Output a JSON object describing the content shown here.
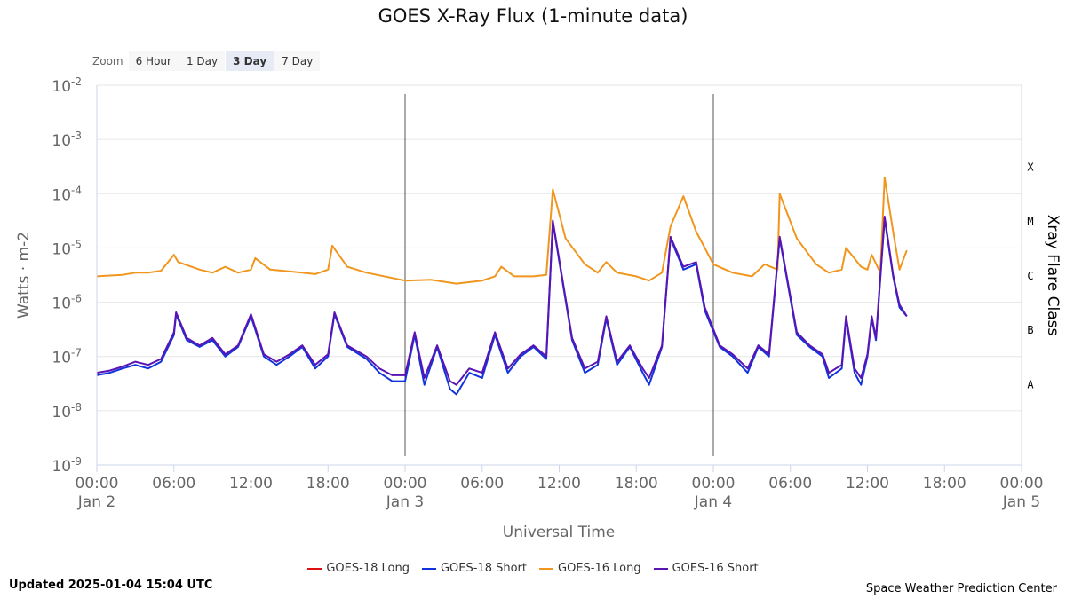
{
  "title": "GOES X-Ray Flux (1-minute data)",
  "zoom": {
    "label": "Zoom",
    "options": [
      "6 Hour",
      "1 Day",
      "3 Day",
      "7 Day"
    ],
    "active": "3 Day"
  },
  "updated": "Updated 2025-01-04 15:04 UTC",
  "credit": "Space Weather Prediction Center",
  "chart_data": {
    "type": "line",
    "title": "GOES X-Ray Flux (1-minute data)",
    "xlabel": "Universal Time",
    "ylabel": "Watts · m-2",
    "y2label": "Xray Flare Class",
    "yscale": "log",
    "ylim": [
      1e-09,
      0.01
    ],
    "xlim": [
      "2025-01-02 00:00",
      "2025-01-05 00:00"
    ],
    "x_ticks": [
      {
        "time": "00:00",
        "date": "Jan 2"
      },
      {
        "time": "06:00",
        "date": ""
      },
      {
        "time": "12:00",
        "date": ""
      },
      {
        "time": "18:00",
        "date": ""
      },
      {
        "time": "00:00",
        "date": "Jan 3"
      },
      {
        "time": "06:00",
        "date": ""
      },
      {
        "time": "12:00",
        "date": ""
      },
      {
        "time": "18:00",
        "date": ""
      },
      {
        "time": "00:00",
        "date": "Jan 4"
      },
      {
        "time": "06:00",
        "date": ""
      },
      {
        "time": "12:00",
        "date": ""
      },
      {
        "time": "18:00",
        "date": ""
      },
      {
        "time": "00:00",
        "date": "Jan 5"
      }
    ],
    "y_ticks": [
      {
        "base": "10",
        "exp": "-2",
        "value": 0.01
      },
      {
        "base": "10",
        "exp": "-3",
        "value": 0.001
      },
      {
        "base": "10",
        "exp": "-4",
        "value": 0.0001
      },
      {
        "base": "10",
        "exp": "-5",
        "value": 1e-05
      },
      {
        "base": "10",
        "exp": "-6",
        "value": 1e-06
      },
      {
        "base": "10",
        "exp": "-7",
        "value": 1e-07
      },
      {
        "base": "10",
        "exp": "-8",
        "value": 1e-08
      },
      {
        "base": "10",
        "exp": "-9",
        "value": 1e-09
      }
    ],
    "flare_classes": [
      {
        "label": "X",
        "value": 0.000316
      },
      {
        "label": "M",
        "value": 3.16e-05
      },
      {
        "label": "C",
        "value": 3.16e-06
      },
      {
        "label": "B",
        "value": 3.16e-07
      },
      {
        "label": "A",
        "value": 3.16e-08
      }
    ],
    "grid": true,
    "legend_position": "bottom",
    "day_markers": [
      "2025-01-03 00:00",
      "2025-01-04 00:00"
    ],
    "series": [
      {
        "name": "GOES-18 Long",
        "color": "#dd1111",
        "points": []
      },
      {
        "name": "GOES-18 Short",
        "color": "#1133dd",
        "points": [
          [
            "2025-01-02 00:00",
            4.5e-08
          ],
          [
            "2025-01-02 01:00",
            5e-08
          ],
          [
            "2025-01-02 02:00",
            6e-08
          ],
          [
            "2025-01-02 03:00",
            7e-08
          ],
          [
            "2025-01-02 04:00",
            6e-08
          ],
          [
            "2025-01-02 05:00",
            8e-08
          ],
          [
            "2025-01-02 06:00",
            2.5e-07
          ],
          [
            "2025-01-02 06:10",
            6e-07
          ],
          [
            "2025-01-02 07:00",
            2e-07
          ],
          [
            "2025-01-02 08:00",
            1.5e-07
          ],
          [
            "2025-01-02 09:00",
            2e-07
          ],
          [
            "2025-01-02 10:00",
            1e-07
          ],
          [
            "2025-01-02 11:00",
            1.5e-07
          ],
          [
            "2025-01-02 12:00",
            5.5e-07
          ],
          [
            "2025-01-02 13:00",
            1e-07
          ],
          [
            "2025-01-02 14:00",
            7e-08
          ],
          [
            "2025-01-02 15:00",
            1e-07
          ],
          [
            "2025-01-02 16:00",
            1.5e-07
          ],
          [
            "2025-01-02 17:00",
            6e-08
          ],
          [
            "2025-01-02 18:00",
            1e-07
          ],
          [
            "2025-01-02 18:30",
            6e-07
          ],
          [
            "2025-01-02 19:30",
            1.5e-07
          ],
          [
            "2025-01-02 21:00",
            9e-08
          ],
          [
            "2025-01-02 22:00",
            5e-08
          ],
          [
            "2025-01-02 23:00",
            3.5e-08
          ],
          [
            "2025-01-03 00:00",
            3.5e-08
          ],
          [
            "2025-01-03 00:45",
            2.5e-07
          ],
          [
            "2025-01-03 01:30",
            3e-08
          ],
          [
            "2025-01-03 02:30",
            1.5e-07
          ],
          [
            "2025-01-03 03:30",
            2.5e-08
          ],
          [
            "2025-01-03 04:00",
            2e-08
          ],
          [
            "2025-01-03 05:00",
            5e-08
          ],
          [
            "2025-01-03 06:00",
            4e-08
          ],
          [
            "2025-01-03 07:00",
            2.5e-07
          ],
          [
            "2025-01-03 08:00",
            5e-08
          ],
          [
            "2025-01-03 09:00",
            1e-07
          ],
          [
            "2025-01-03 10:00",
            1.5e-07
          ],
          [
            "2025-01-03 11:00",
            9e-08
          ],
          [
            "2025-01-03 11:30",
            3e-05
          ],
          [
            "2025-01-03 13:00",
            2e-07
          ],
          [
            "2025-01-03 14:00",
            5e-08
          ],
          [
            "2025-01-03 15:00",
            7e-08
          ],
          [
            "2025-01-03 15:40",
            5e-07
          ],
          [
            "2025-01-03 16:30",
            7e-08
          ],
          [
            "2025-01-03 17:30",
            1.5e-07
          ],
          [
            "2025-01-03 18:30",
            5e-08
          ],
          [
            "2025-01-03 19:00",
            3e-08
          ],
          [
            "2025-01-03 20:00",
            1.5e-07
          ],
          [
            "2025-01-03 20:40",
            1.5e-05
          ],
          [
            "2025-01-03 21:40",
            4e-06
          ],
          [
            "2025-01-03 22:40",
            5e-06
          ],
          [
            "2025-01-03 23:20",
            7e-07
          ],
          [
            "2025-01-04 00:30",
            1.5e-07
          ],
          [
            "2025-01-04 01:30",
            1e-07
          ],
          [
            "2025-01-04 02:40",
            5e-08
          ],
          [
            "2025-01-04 03:30",
            1.5e-07
          ],
          [
            "2025-01-04 04:20",
            1e-07
          ],
          [
            "2025-01-04 05:10",
            1.5e-05
          ],
          [
            "2025-01-04 06:30",
            2.5e-07
          ],
          [
            "2025-01-04 07:30",
            1.5e-07
          ],
          [
            "2025-01-04 08:30",
            1e-07
          ],
          [
            "2025-01-04 09:00",
            4e-08
          ],
          [
            "2025-01-04 10:00",
            6e-08
          ],
          [
            "2025-01-04 10:20",
            5e-07
          ],
          [
            "2025-01-04 11:00",
            5e-08
          ],
          [
            "2025-01-04 11:30",
            3e-08
          ],
          [
            "2025-01-04 12:00",
            1e-07
          ],
          [
            "2025-01-04 12:20",
            5e-07
          ],
          [
            "2025-01-04 12:40",
            2e-07
          ],
          [
            "2025-01-04 13:20",
            3.5e-05
          ],
          [
            "2025-01-04 14:00",
            3e-06
          ],
          [
            "2025-01-04 14:30",
            8e-07
          ],
          [
            "2025-01-04 15:04",
            5.5e-07
          ]
        ]
      },
      {
        "name": "GOES-16 Long",
        "color": "#f0961e",
        "points": [
          [
            "2025-01-02 00:00",
            3e-06
          ],
          [
            "2025-01-02 02:00",
            3.2e-06
          ],
          [
            "2025-01-02 03:00",
            3.5e-06
          ],
          [
            "2025-01-02 04:00",
            3.5e-06
          ],
          [
            "2025-01-02 05:00",
            3.8e-06
          ],
          [
            "2025-01-02 06:00",
            7.5e-06
          ],
          [
            "2025-01-02 06:20",
            5.5e-06
          ],
          [
            "2025-01-02 08:00",
            4e-06
          ],
          [
            "2025-01-02 09:00",
            3.5e-06
          ],
          [
            "2025-01-02 10:00",
            4.5e-06
          ],
          [
            "2025-01-02 11:00",
            3.5e-06
          ],
          [
            "2025-01-02 12:00",
            4e-06
          ],
          [
            "2025-01-02 12:20",
            6.5e-06
          ],
          [
            "2025-01-02 13:30",
            4e-06
          ],
          [
            "2025-01-02 16:00",
            3.5e-06
          ],
          [
            "2025-01-02 17:00",
            3.3e-06
          ],
          [
            "2025-01-02 18:00",
            4e-06
          ],
          [
            "2025-01-02 18:20",
            1.1e-05
          ],
          [
            "2025-01-02 19:30",
            4.5e-06
          ],
          [
            "2025-01-02 21:00",
            3.5e-06
          ],
          [
            "2025-01-03 00:00",
            2.5e-06
          ],
          [
            "2025-01-03 02:00",
            2.6e-06
          ],
          [
            "2025-01-03 04:00",
            2.2e-06
          ],
          [
            "2025-01-03 06:00",
            2.5e-06
          ],
          [
            "2025-01-03 07:00",
            3e-06
          ],
          [
            "2025-01-03 07:30",
            4.5e-06
          ],
          [
            "2025-01-03 08:30",
            3e-06
          ],
          [
            "2025-01-03 10:00",
            3e-06
          ],
          [
            "2025-01-03 11:00",
            3.2e-06
          ],
          [
            "2025-01-03 11:30",
            0.00012
          ],
          [
            "2025-01-03 12:30",
            1.5e-05
          ],
          [
            "2025-01-03 14:00",
            5e-06
          ],
          [
            "2025-01-03 15:00",
            3.5e-06
          ],
          [
            "2025-01-03 15:40",
            5.5e-06
          ],
          [
            "2025-01-03 16:30",
            3.5e-06
          ],
          [
            "2025-01-03 18:00",
            3e-06
          ],
          [
            "2025-01-03 19:00",
            2.5e-06
          ],
          [
            "2025-01-03 20:00",
            3.5e-06
          ],
          [
            "2025-01-03 20:40",
            2.5e-05
          ],
          [
            "2025-01-03 21:40",
            9e-05
          ],
          [
            "2025-01-03 22:40",
            2e-05
          ],
          [
            "2025-01-03 23:20",
            1e-05
          ],
          [
            "2025-01-04 00:00",
            5e-06
          ],
          [
            "2025-01-04 01:30",
            3.5e-06
          ],
          [
            "2025-01-04 03:00",
            3e-06
          ],
          [
            "2025-01-04 04:00",
            5e-06
          ],
          [
            "2025-01-04 05:00",
            4e-06
          ],
          [
            "2025-01-04 05:10",
            0.0001
          ],
          [
            "2025-01-04 06:30",
            1.5e-05
          ],
          [
            "2025-01-04 08:00",
            5e-06
          ],
          [
            "2025-01-04 09:00",
            3.5e-06
          ],
          [
            "2025-01-04 10:00",
            4e-06
          ],
          [
            "2025-01-04 10:20",
            1e-05
          ],
          [
            "2025-01-04 11:30",
            4.5e-06
          ],
          [
            "2025-01-04 12:00",
            4e-06
          ],
          [
            "2025-01-04 12:20",
            7.5e-06
          ],
          [
            "2025-01-04 13:00",
            3.5e-06
          ],
          [
            "2025-01-04 13:20",
            0.0002
          ],
          [
            "2025-01-04 14:00",
            2e-05
          ],
          [
            "2025-01-04 14:30",
            4e-06
          ],
          [
            "2025-01-04 15:04",
            9e-06
          ]
        ]
      },
      {
        "name": "GOES-16 Short",
        "color": "#5a14b4",
        "points": [
          [
            "2025-01-02 00:00",
            5e-08
          ],
          [
            "2025-01-02 01:00",
            5.5e-08
          ],
          [
            "2025-01-02 02:00",
            6.5e-08
          ],
          [
            "2025-01-02 03:00",
            8e-08
          ],
          [
            "2025-01-02 04:00",
            7e-08
          ],
          [
            "2025-01-02 05:00",
            9e-08
          ],
          [
            "2025-01-02 06:00",
            2.8e-07
          ],
          [
            "2025-01-02 06:10",
            6.5e-07
          ],
          [
            "2025-01-02 07:00",
            2.2e-07
          ],
          [
            "2025-01-02 08:00",
            1.6e-07
          ],
          [
            "2025-01-02 09:00",
            2.2e-07
          ],
          [
            "2025-01-02 10:00",
            1.1e-07
          ],
          [
            "2025-01-02 11:00",
            1.6e-07
          ],
          [
            "2025-01-02 12:00",
            6e-07
          ],
          [
            "2025-01-02 13:00",
            1.1e-07
          ],
          [
            "2025-01-02 14:00",
            8e-08
          ],
          [
            "2025-01-02 15:00",
            1.1e-07
          ],
          [
            "2025-01-02 16:00",
            1.6e-07
          ],
          [
            "2025-01-02 17:00",
            7e-08
          ],
          [
            "2025-01-02 18:00",
            1.1e-07
          ],
          [
            "2025-01-02 18:30",
            6.5e-07
          ],
          [
            "2025-01-02 19:30",
            1.6e-07
          ],
          [
            "2025-01-02 21:00",
            1e-07
          ],
          [
            "2025-01-02 22:00",
            6e-08
          ],
          [
            "2025-01-02 23:00",
            4.5e-08
          ],
          [
            "2025-01-03 00:00",
            4.5e-08
          ],
          [
            "2025-01-03 00:45",
            2.8e-07
          ],
          [
            "2025-01-03 01:30",
            4e-08
          ],
          [
            "2025-01-03 02:30",
            1.6e-07
          ],
          [
            "2025-01-03 03:30",
            3.5e-08
          ],
          [
            "2025-01-03 04:00",
            3e-08
          ],
          [
            "2025-01-03 05:00",
            6e-08
          ],
          [
            "2025-01-03 06:00",
            5e-08
          ],
          [
            "2025-01-03 07:00",
            2.8e-07
          ],
          [
            "2025-01-03 08:00",
            6e-08
          ],
          [
            "2025-01-03 09:00",
            1.1e-07
          ],
          [
            "2025-01-03 10:00",
            1.6e-07
          ],
          [
            "2025-01-03 11:00",
            1e-07
          ],
          [
            "2025-01-03 11:30",
            3.2e-05
          ],
          [
            "2025-01-03 13:00",
            2.2e-07
          ],
          [
            "2025-01-03 14:00",
            6e-08
          ],
          [
            "2025-01-03 15:00",
            8e-08
          ],
          [
            "2025-01-03 15:40",
            5.5e-07
          ],
          [
            "2025-01-03 16:30",
            8e-08
          ],
          [
            "2025-01-03 17:30",
            1.6e-07
          ],
          [
            "2025-01-03 18:30",
            6e-08
          ],
          [
            "2025-01-03 19:00",
            4e-08
          ],
          [
            "2025-01-03 20:00",
            1.6e-07
          ],
          [
            "2025-01-03 20:40",
            1.6e-05
          ],
          [
            "2025-01-03 21:40",
            4.5e-06
          ],
          [
            "2025-01-03 22:40",
            5.5e-06
          ],
          [
            "2025-01-03 23:20",
            8e-07
          ],
          [
            "2025-01-04 00:30",
            1.6e-07
          ],
          [
            "2025-01-04 01:30",
            1.1e-07
          ],
          [
            "2025-01-04 02:40",
            6e-08
          ],
          [
            "2025-01-04 03:30",
            1.6e-07
          ],
          [
            "2025-01-04 04:20",
            1.1e-07
          ],
          [
            "2025-01-04 05:10",
            1.6e-05
          ],
          [
            "2025-01-04 06:30",
            2.8e-07
          ],
          [
            "2025-01-04 07:30",
            1.6e-07
          ],
          [
            "2025-01-04 08:30",
            1.1e-07
          ],
          [
            "2025-01-04 09:00",
            5e-08
          ],
          [
            "2025-01-04 10:00",
            7e-08
          ],
          [
            "2025-01-04 10:20",
            5.5e-07
          ],
          [
            "2025-01-04 11:00",
            6e-08
          ],
          [
            "2025-01-04 11:30",
            4e-08
          ],
          [
            "2025-01-04 12:00",
            1.1e-07
          ],
          [
            "2025-01-04 12:20",
            5.5e-07
          ],
          [
            "2025-01-04 12:40",
            2.2e-07
          ],
          [
            "2025-01-04 13:20",
            3.8e-05
          ],
          [
            "2025-01-04 14:00",
            3.2e-06
          ],
          [
            "2025-01-04 14:30",
            9e-07
          ],
          [
            "2025-01-04 15:04",
            5.5e-07
          ]
        ]
      }
    ]
  }
}
